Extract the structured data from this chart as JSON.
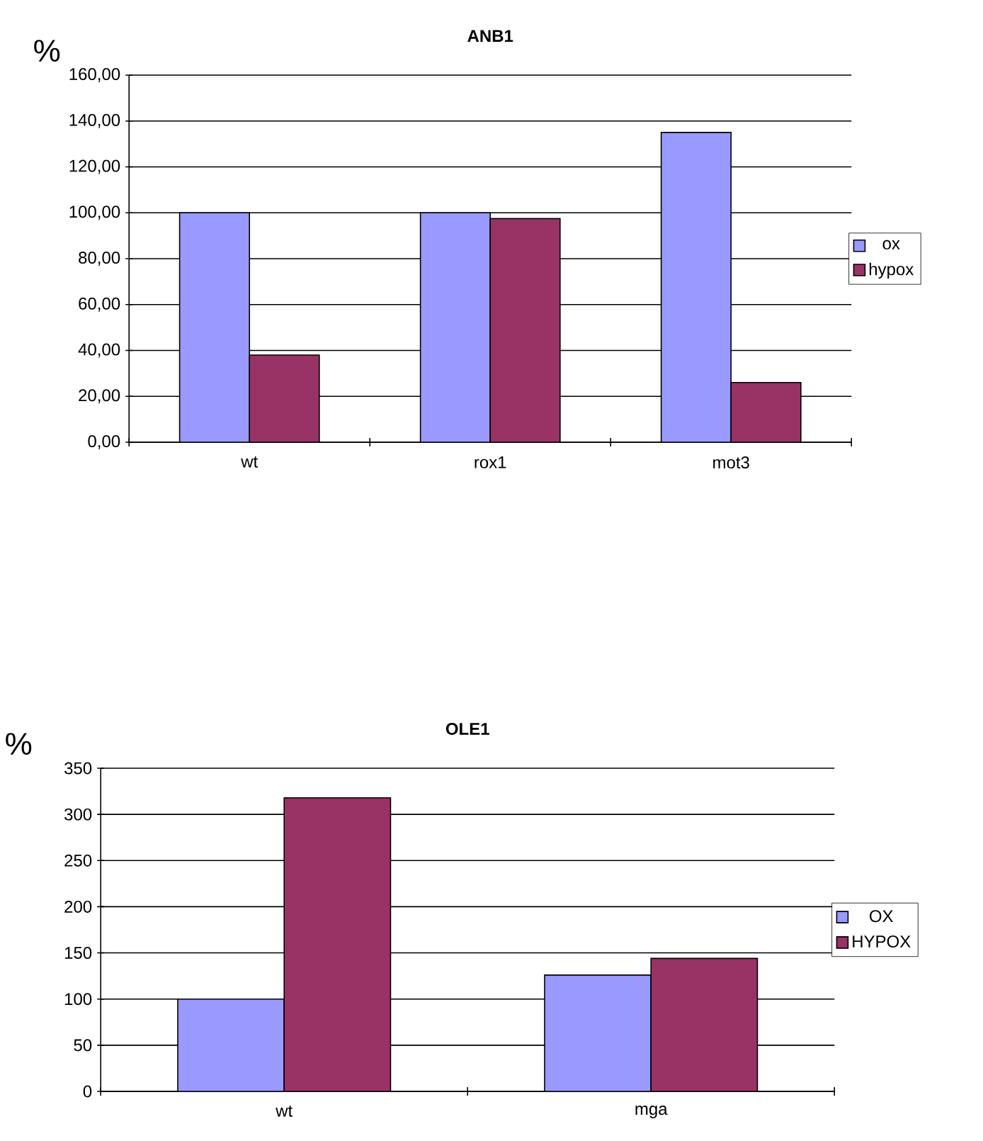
{
  "chart_data": [
    {
      "type": "bar",
      "title": "ANB1",
      "ylabel": "%",
      "categories": [
        "wt",
        "rox1",
        "mot3"
      ],
      "series": [
        {
          "name": "ox",
          "color": "#9999ff",
          "values": [
            100,
            100,
            135
          ]
        },
        {
          "name": "hypox",
          "color": "#993366",
          "values": [
            38,
            97.5,
            26
          ]
        }
      ],
      "ylim": [
        0,
        160
      ],
      "yticks": [
        {
          "value": 0,
          "label": "0,00"
        },
        {
          "value": 20,
          "label": "20,00"
        },
        {
          "value": 40,
          "label": "40,00"
        },
        {
          "value": 60,
          "label": "60,00"
        },
        {
          "value": 80,
          "label": "80,00"
        },
        {
          "value": 100,
          "label": "100,00"
        },
        {
          "value": 120,
          "label": "120,00"
        },
        {
          "value": 140,
          "label": "140,00"
        },
        {
          "value": 160,
          "label": "160,00"
        }
      ],
      "grid": "y",
      "legend": "right"
    },
    {
      "type": "bar",
      "title": "OLE1",
      "ylabel": "%",
      "categories": [
        "wt",
        "mga"
      ],
      "series": [
        {
          "name": "OX",
          "color": "#9999ff",
          "values": [
            100,
            126
          ]
        },
        {
          "name": "HYPOX",
          "color": "#993366",
          "values": [
            318,
            144
          ]
        }
      ],
      "ylim": [
        0,
        350
      ],
      "yticks": [
        0,
        50,
        100,
        150,
        200,
        250,
        300,
        350
      ],
      "grid": "y",
      "legend": "right"
    }
  ]
}
